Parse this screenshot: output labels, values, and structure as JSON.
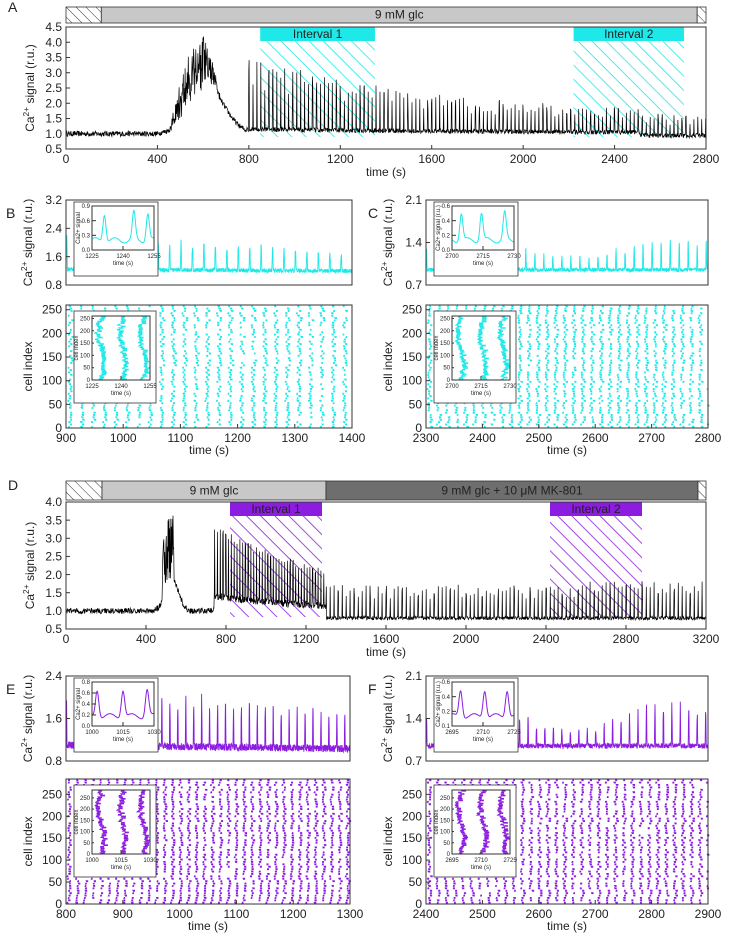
{
  "colors": {
    "black": "#000000",
    "cyan": "#1ee8e8",
    "purple": "#8c1de0",
    "bar_light": "#c8c8c8",
    "bar_dark": "#6e6e6e",
    "axis": "#333333"
  },
  "chart_data": [
    {
      "type": "line",
      "panel": "A",
      "title": "",
      "xlabel": "time (s)",
      "ylabel": "Ca2+ signal (r.u.)",
      "ylabel_parts": {
        "base": "Ca",
        "sup": "2+",
        "rest": " signal (r.u.)"
      },
      "xlim": [
        0,
        2900
      ],
      "ylim": [
        0.5,
        4.5
      ],
      "xticks": [
        "0",
        "400",
        "800",
        "1200",
        "1600",
        "2000",
        "2400",
        "2800"
      ],
      "yticks": [
        "0.5",
        "1.0",
        "1.5",
        "2.0",
        "2.5",
        "3.0",
        "3.5",
        "4.0",
        "4.5"
      ],
      "color_key": "black",
      "series": [
        {
          "name": "mean Ca2+ signal",
          "profile": "fullA"
        }
      ],
      "stimulus_bar": [
        {
          "label": "",
          "x": [
            0,
            160
          ],
          "style": "hatched"
        },
        {
          "label": "9 mM glc",
          "x": [
            160,
            2860
          ],
          "style": "light"
        },
        {
          "label": "",
          "x": [
            2860,
            2900
          ],
          "style": "hatched"
        }
      ],
      "intervals": [
        {
          "label": "Interval 1",
          "x": [
            880,
            1400
          ]
        },
        {
          "label": "Interval 2",
          "x": [
            2300,
            2800
          ]
        }
      ],
      "interval_color_key": "cyan"
    },
    {
      "type": "line",
      "panel": "B",
      "ylabel_parts": {
        "base": "Ca",
        "sup": "2+",
        "rest": " signal (r.u.)"
      },
      "xlim": [
        900,
        1400
      ],
      "ylim": [
        0.8,
        3.2
      ],
      "yticks": [
        "0.8",
        "1.6",
        "2.4",
        "3.2"
      ],
      "color_key": "cyan",
      "series": [
        {
          "name": "mean Ca2+ signal",
          "profile": "osc",
          "base": 1.25,
          "amp": 0.95,
          "period": 20,
          "decay": true
        }
      ],
      "inset": {
        "xlim": [
          1220,
          1260
        ],
        "ylim": [
          0.0,
          0.9
        ],
        "xticks": [
          "1225",
          "1240",
          "1255"
        ],
        "yticks": [
          "0.0",
          "0.3",
          "0.6",
          "0.9"
        ],
        "xlabel": "time (s)",
        "ylabel": "Ca2+ signal",
        "peaks": [
          1228,
          1247,
          1256
        ]
      }
    },
    {
      "type": "raster",
      "panel": "B-raster",
      "xlabel": "time (s)",
      "ylabel": "cell index",
      "xlim": [
        900,
        1400
      ],
      "ylim": [
        0,
        260
      ],
      "xticks": [
        "900",
        "1000",
        "1100",
        "1200",
        "1300",
        "1400"
      ],
      "yticks": [
        "0",
        "50",
        "100",
        "150",
        "200",
        "250"
      ],
      "color_key": "cyan",
      "period": 20,
      "inset": {
        "xlim": [
          1220,
          1260
        ],
        "ylim": [
          0,
          260
        ],
        "xticks": [
          "1225",
          "1240",
          "1255"
        ],
        "yticks": [
          "0",
          "50",
          "100",
          "150",
          "200",
          "250"
        ],
        "xlabel": "time (s)",
        "ylabel": "cell index"
      }
    },
    {
      "type": "line",
      "panel": "C",
      "ylabel_parts": {
        "base": "Ca",
        "sup": "2+",
        "rest": " signal (r.u.)"
      },
      "xlim": [
        2300,
        2800
      ],
      "ylim": [
        0.7,
        2.1
      ],
      "yticks": [
        "0.7",
        "1.4",
        "2.1"
      ],
      "color_key": "cyan",
      "series": [
        {
          "name": "mean Ca2+ signal",
          "profile": "osc",
          "base": 0.95,
          "amp": 0.5,
          "period": 16,
          "decay": false
        }
      ],
      "inset": {
        "xlim": [
          2695,
          2735
        ],
        "ylim": [
          0.0,
          0.6
        ],
        "xticks": [
          "2700",
          "2715",
          "2730"
        ],
        "yticks": [
          "0.0",
          "0.2",
          "0.4",
          "0.6"
        ],
        "xlabel": "time (s)",
        "ylabel": "Ca2+ signal (r.u.)",
        "peaks": [
          2701,
          2714,
          2729
        ]
      }
    },
    {
      "type": "raster",
      "panel": "C-raster",
      "xlabel": "time (s)",
      "ylabel": "cell index",
      "xlim": [
        2300,
        2800
      ],
      "ylim": [
        0,
        260
      ],
      "xticks": [
        "2300",
        "2400",
        "2500",
        "2600",
        "2700",
        "2800"
      ],
      "yticks": [
        "0",
        "50",
        "100",
        "150",
        "200",
        "250"
      ],
      "color_key": "cyan",
      "period": 16,
      "inset": {
        "xlim": [
          2695,
          2735
        ],
        "ylim": [
          0,
          260
        ],
        "xticks": [
          "2700",
          "2715",
          "2730"
        ],
        "yticks": [
          "0",
          "50",
          "100",
          "150",
          "200",
          "250"
        ],
        "xlabel": "time (s)",
        "ylabel": "cell index"
      }
    },
    {
      "type": "line",
      "panel": "D",
      "xlabel": "time (s)",
      "ylabel_parts": {
        "base": "Ca",
        "sup": "2+",
        "rest": " signal (r.u.)"
      },
      "xlim": [
        0,
        3200
      ],
      "ylim": [
        0.5,
        4.0
      ],
      "xticks": [
        "0",
        "400",
        "800",
        "1200",
        "1600",
        "2000",
        "2400",
        "2800",
        "3200"
      ],
      "yticks": [
        "0.5",
        "1.0",
        "1.5",
        "2.0",
        "2.5",
        "3.0",
        "3.5",
        "4.0"
      ],
      "color_key": "black",
      "series": [
        {
          "name": "mean Ca2+ signal",
          "profile": "fullD"
        }
      ],
      "stimulus_bar": [
        {
          "label": "",
          "x": [
            0,
            180
          ],
          "style": "hatched"
        },
        {
          "label": "9 mM glc",
          "x": [
            180,
            1300
          ],
          "style": "light"
        },
        {
          "label": "9 mM glc + 10 μM MK-801",
          "x": [
            1300,
            3160
          ],
          "style": "dark"
        },
        {
          "label": "",
          "x": [
            3160,
            3200
          ],
          "style": "hatched"
        }
      ],
      "intervals": [
        {
          "label": "Interval 1",
          "x": [
            820,
            1280
          ]
        },
        {
          "label": "Interval 2",
          "x": [
            2420,
            2880
          ]
        }
      ],
      "interval_color_key": "purple"
    },
    {
      "type": "line",
      "panel": "E",
      "ylabel_parts": {
        "base": "Ca",
        "sup": "2+",
        "rest": " signal (r.u.)"
      },
      "xlim": [
        800,
        1300
      ],
      "ylim": [
        0.8,
        2.4
      ],
      "yticks": [
        "0.8",
        "1.6",
        "2.4"
      ],
      "color_key": "purple",
      "series": [
        {
          "name": "mean Ca2+ signal",
          "profile": "osc",
          "base": 1.1,
          "amp": 1.15,
          "period": 14,
          "decay": true
        }
      ],
      "inset": {
        "xlim": [
          998,
          1034
        ],
        "ylim": [
          0.0,
          0.8
        ],
        "xticks": [
          "1000",
          "1015",
          "1030"
        ],
        "yticks": [
          "0.0",
          "0.2",
          "0.4",
          "0.6",
          "0.8"
        ],
        "xlabel": "time (s)",
        "ylabel": "Ca2+ signal",
        "peaks": [
          1001,
          1016,
          1030
        ]
      }
    },
    {
      "type": "raster",
      "panel": "E-raster",
      "xlabel": "time (s)",
      "ylabel": "cell index",
      "xlim": [
        800,
        1300
      ],
      "ylim": [
        0,
        285
      ],
      "xticks": [
        "800",
        "900",
        "1000",
        "1100",
        "1200",
        "1300"
      ],
      "yticks": [
        "0",
        "50",
        "100",
        "150",
        "200",
        "250"
      ],
      "color_key": "purple",
      "period": 14,
      "inset": {
        "xlim": [
          998,
          1034
        ],
        "ylim": [
          0,
          285
        ],
        "xticks": [
          "1000",
          "1015",
          "1030"
        ],
        "yticks": [
          "0",
          "50",
          "100",
          "150",
          "200",
          "250"
        ],
        "xlabel": "time (s)",
        "ylabel": "cell index"
      }
    },
    {
      "type": "line",
      "panel": "F",
      "ylabel_parts": {
        "base": "Ca",
        "sup": "2+",
        "rest": " signal (r.u.)"
      },
      "xlim": [
        2400,
        2900
      ],
      "ylim": [
        0.7,
        2.1
      ],
      "yticks": [
        "0.7",
        "1.4",
        "2.1"
      ],
      "color_key": "purple",
      "series": [
        {
          "name": "mean Ca2+ signal",
          "profile": "osc",
          "base": 0.95,
          "amp": 0.7,
          "period": 15,
          "decay": false
        }
      ],
      "inset": {
        "xlim": [
          2692,
          2728
        ],
        "ylim": [
          0.0,
          0.7
        ],
        "xticks": [
          "2695",
          "2710",
          "2725"
        ],
        "yticks": [
          "0.1",
          "0.2",
          "0.4",
          "0.6"
        ],
        "xlabel": "time (s)",
        "ylabel": "Ca2+ signal (r.u.)",
        "peaks": [
          2697,
          2711,
          2724
        ]
      }
    },
    {
      "type": "raster",
      "panel": "F-raster",
      "xlabel": "time (s)",
      "ylabel": "cell index",
      "xlim": [
        2400,
        2900
      ],
      "ylim": [
        0,
        285
      ],
      "xticks": [
        "2400",
        "2500",
        "2600",
        "2700",
        "2800",
        "2900"
      ],
      "yticks": [
        "0",
        "50",
        "100",
        "150",
        "200",
        "250"
      ],
      "color_key": "purple",
      "period": 15,
      "inset": {
        "xlim": [
          2692,
          2728
        ],
        "ylim": [
          0,
          285
        ],
        "xticks": [
          "2695",
          "2710",
          "2725"
        ],
        "yticks": [
          "0",
          "50",
          "100",
          "150",
          "200",
          "250"
        ],
        "xlabel": "time (s)",
        "ylabel": "cell index"
      }
    }
  ],
  "panel_letters": {
    "A": "A",
    "B": "B",
    "C": "C",
    "D": "D",
    "E": "E",
    "F": "F"
  }
}
